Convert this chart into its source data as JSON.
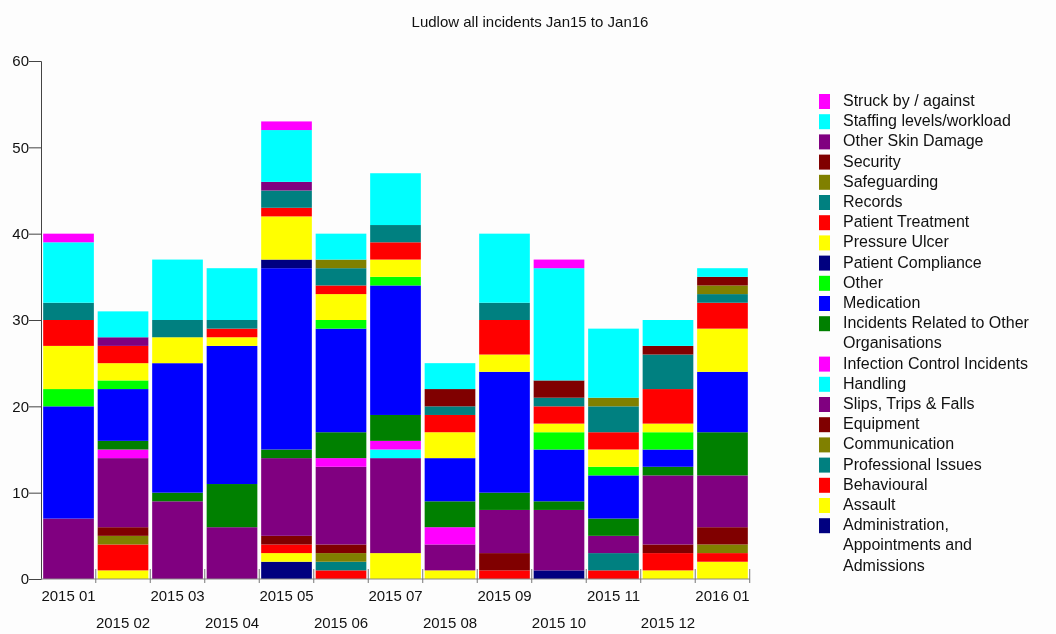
{
  "chart_data": {
    "type": "bar",
    "title": "Ludlow all incidents Jan15 to Jan16",
    "stacked": true,
    "legend": "right",
    "grid": false,
    "categories": [
      "2015 01",
      "2015 02",
      "2015 03",
      "2015 04",
      "2015 05",
      "2015 06",
      "2015 07",
      "2015 08",
      "2015 09",
      "2015 10",
      "2015 11",
      "2015 12",
      "2016 01"
    ],
    "ylim": [
      0,
      60
    ],
    "yticks": [
      0,
      10,
      20,
      30,
      40,
      50,
      60
    ],
    "series": [
      {
        "name": "Administration, Appointments and Admissions",
        "color": "#000080",
        "values": [
          0,
          0,
          0,
          0,
          2,
          0,
          0,
          0,
          0,
          1,
          0,
          0,
          0
        ]
      },
      {
        "name": "Assault",
        "color": "#ffff00",
        "values": [
          0,
          1,
          0,
          0,
          1,
          0,
          3,
          1,
          0,
          0,
          0,
          1,
          2
        ]
      },
      {
        "name": "Behavioural",
        "color": "#ff0000",
        "values": [
          0,
          3,
          0,
          0,
          1,
          1,
          0,
          0,
          1,
          0,
          1,
          2,
          1
        ]
      },
      {
        "name": "Professional Issues",
        "color": "#008080",
        "values": [
          0,
          0,
          0,
          0,
          0,
          1,
          0,
          0,
          0,
          0,
          2,
          0,
          0
        ]
      },
      {
        "name": "Communication",
        "color": "#808000",
        "values": [
          0,
          1,
          0,
          0,
          0,
          1,
          0,
          0,
          0,
          0,
          0,
          0,
          1
        ]
      },
      {
        "name": "Equipment",
        "color": "#800000",
        "values": [
          0,
          1,
          0,
          0,
          1,
          1,
          0,
          0,
          2,
          0,
          0,
          1,
          2
        ]
      },
      {
        "name": "Slips, Trips & Falls",
        "color": "#800080",
        "values": [
          7,
          8,
          9,
          6,
          9,
          9,
          11,
          3,
          5,
          7,
          2,
          8,
          6
        ]
      },
      {
        "name": "Handling",
        "color": "#00ffff",
        "values": [
          0,
          0,
          0,
          0,
          0,
          0,
          1,
          0,
          0,
          0,
          0,
          0,
          0
        ]
      },
      {
        "name": "Infection Control Incidents",
        "color": "#ff00ff",
        "values": [
          0,
          1,
          0,
          0,
          0,
          1,
          1,
          2,
          0,
          0,
          0,
          0,
          0
        ]
      },
      {
        "name": "Incidents Related to Other Organisations",
        "color": "#008000",
        "values": [
          0,
          1,
          1,
          5,
          1,
          3,
          3,
          3,
          2,
          1,
          2,
          1,
          5
        ]
      },
      {
        "name": "Medication",
        "color": "#0000ff",
        "values": [
          13,
          6,
          15,
          16,
          21,
          12,
          15,
          5,
          14,
          6,
          5,
          2,
          7
        ]
      },
      {
        "name": "Other",
        "color": "#00ff00",
        "values": [
          2,
          1,
          0,
          0,
          0,
          1,
          1,
          0,
          0,
          2,
          1,
          2,
          0
        ]
      },
      {
        "name": "Patient Compliance",
        "color": "#000080",
        "values": [
          0,
          0,
          0,
          0,
          1,
          0,
          0,
          0,
          0,
          0,
          0,
          0,
          0
        ]
      },
      {
        "name": "Pressure Ulcer",
        "color": "#ffff00",
        "values": [
          5,
          2,
          3,
          1,
          5,
          3,
          2,
          3,
          2,
          1,
          2,
          1,
          5
        ]
      },
      {
        "name": "Patient Treatment",
        "color": "#ff0000",
        "values": [
          3,
          2,
          0,
          1,
          1,
          1,
          2,
          2,
          4,
          2,
          2,
          4,
          3
        ]
      },
      {
        "name": "Records",
        "color": "#008080",
        "values": [
          2,
          0,
          2,
          1,
          2,
          2,
          2,
          1,
          2,
          1,
          3,
          4,
          1
        ]
      },
      {
        "name": "Safeguarding",
        "color": "#808000",
        "values": [
          0,
          0,
          0,
          0,
          0,
          1,
          0,
          0,
          0,
          0,
          1,
          0,
          1
        ]
      },
      {
        "name": "Security",
        "color": "#800000",
        "values": [
          0,
          0,
          0,
          0,
          0,
          0,
          0,
          2,
          0,
          2,
          0,
          1,
          1
        ]
      },
      {
        "name": "Other Skin Damage",
        "color": "#800080",
        "values": [
          0,
          1,
          0,
          0,
          1,
          0,
          0,
          0,
          0,
          0,
          0,
          0,
          0
        ]
      },
      {
        "name": "Staffing levels/workload",
        "color": "#00ffff",
        "values": [
          7,
          3,
          7,
          6,
          6,
          3,
          6,
          3,
          8,
          13,
          8,
          3,
          1
        ]
      },
      {
        "name": "Struck by / against",
        "color": "#ff00ff",
        "values": [
          1,
          0,
          0,
          0,
          1,
          0,
          0,
          0,
          0,
          1,
          0,
          0,
          0
        ]
      }
    ]
  }
}
